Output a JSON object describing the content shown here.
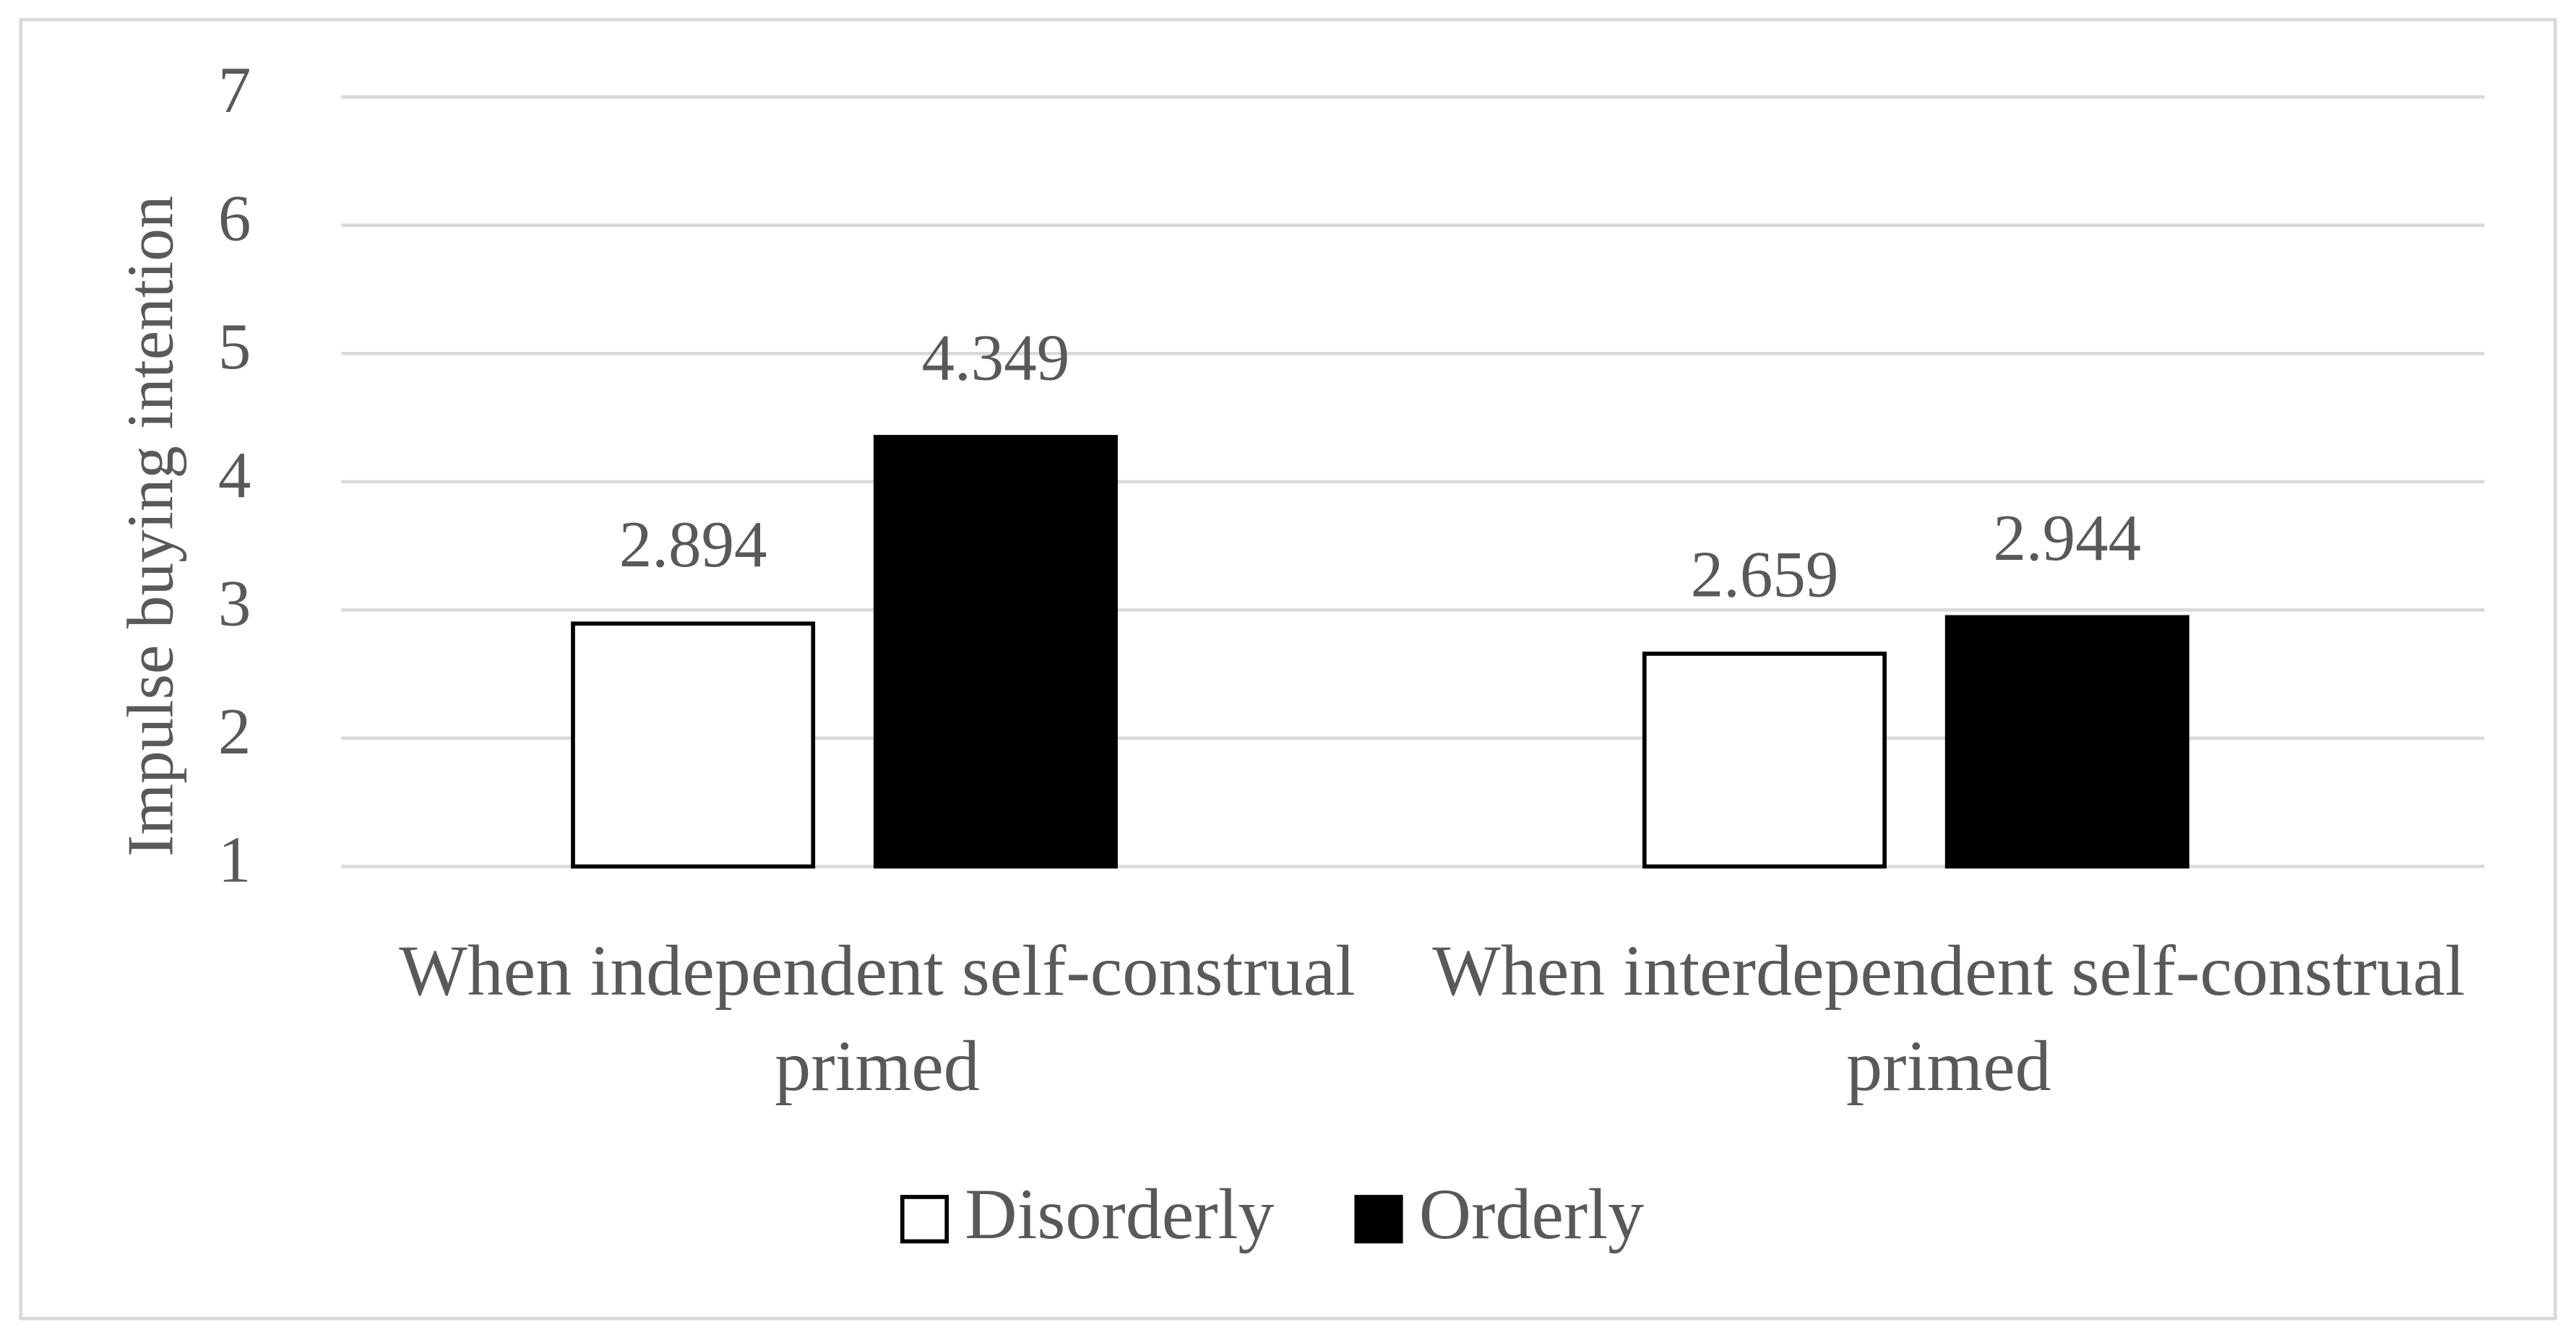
{
  "chart_data": {
    "type": "bar",
    "y_label": "Impulse buying intention",
    "categories": [
      "When independent self-construal primed",
      "When interdependent self-construal primed"
    ],
    "series": [
      {
        "name": "Disorderly",
        "color": "#ffffff",
        "values": [
          2.894,
          2.659
        ]
      },
      {
        "name": "Orderly",
        "color": "#000000",
        "values": [
          4.349,
          2.944
        ]
      }
    ],
    "ylim": [
      1,
      7
    ],
    "yticks": [
      1,
      2,
      3,
      4,
      5,
      6,
      7
    ],
    "grid": true,
    "legend": "bottom"
  }
}
